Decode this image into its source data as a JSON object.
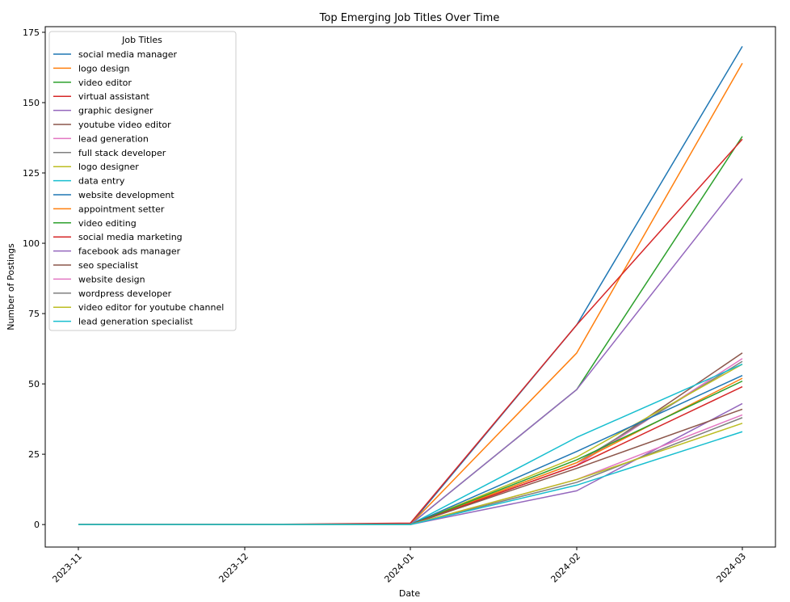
{
  "chart_data": {
    "type": "line",
    "title": "Top Emerging Job Titles Over Time",
    "xlabel": "Date",
    "ylabel": "Number of Postings",
    "categories": [
      "2023-11",
      "2023-12",
      "2024-01",
      "2024-02",
      "2024-03"
    ],
    "ylim": [
      -8,
      177
    ],
    "yticks": [
      0,
      25,
      50,
      75,
      100,
      125,
      150,
      175
    ],
    "grid": false,
    "legend": {
      "title": "Job Titles",
      "placement": "top-left"
    },
    "series": [
      {
        "name": "social media manager",
        "color": "#1f77b4",
        "values": [
          0,
          0,
          0,
          71,
          170
        ]
      },
      {
        "name": "logo design",
        "color": "#ff7f0e",
        "values": [
          0,
          0,
          0,
          61,
          164
        ]
      },
      {
        "name": "video editor",
        "color": "#2ca02c",
        "values": [
          0,
          0,
          0,
          48,
          138
        ]
      },
      {
        "name": "virtual assistant",
        "color": "#d62728",
        "values": [
          0,
          0,
          0.5,
          71,
          137
        ]
      },
      {
        "name": "graphic designer",
        "color": "#9467bd",
        "values": [
          0,
          0,
          0,
          48,
          123
        ]
      },
      {
        "name": "youtube video editor",
        "color": "#8c564b",
        "values": [
          0,
          0,
          0,
          21,
          61
        ]
      },
      {
        "name": "lead generation",
        "color": "#e377c2",
        "values": [
          0,
          0,
          0,
          21,
          59
        ]
      },
      {
        "name": "full stack developer",
        "color": "#7f7f7f",
        "values": [
          0,
          0,
          0,
          22,
          58
        ]
      },
      {
        "name": "logo designer",
        "color": "#bcbd22",
        "values": [
          0,
          0,
          0,
          24,
          57
        ]
      },
      {
        "name": "data entry",
        "color": "#17becf",
        "values": [
          0,
          0,
          0,
          31,
          57
        ]
      },
      {
        "name": "website development",
        "color": "#1f77b4",
        "values": [
          0,
          0,
          0,
          26,
          53
        ]
      },
      {
        "name": "appointment setter",
        "color": "#ff7f0e",
        "values": [
          0,
          0,
          0,
          22,
          52
        ]
      },
      {
        "name": "video editing",
        "color": "#2ca02c",
        "values": [
          0,
          0,
          0,
          23,
          51
        ]
      },
      {
        "name": "social media marketing",
        "color": "#d62728",
        "values": [
          0,
          0,
          0,
          21,
          49
        ]
      },
      {
        "name": "facebook ads manager",
        "color": "#9467bd",
        "values": [
          0,
          0,
          0,
          12,
          43
        ]
      },
      {
        "name": "seo specialist",
        "color": "#8c564b",
        "values": [
          0,
          0,
          0,
          20,
          41
        ]
      },
      {
        "name": "website design",
        "color": "#e377c2",
        "values": [
          0,
          0,
          0,
          16,
          39
        ]
      },
      {
        "name": "wordpress developer",
        "color": "#7f7f7f",
        "values": [
          0,
          0,
          0,
          15,
          38
        ]
      },
      {
        "name": "video editor for youtube channel",
        "color": "#bcbd22",
        "values": [
          0,
          0,
          0,
          16,
          36
        ]
      },
      {
        "name": "lead generation specialist",
        "color": "#17becf",
        "values": [
          0,
          0,
          0,
          14,
          33
        ]
      }
    ]
  }
}
